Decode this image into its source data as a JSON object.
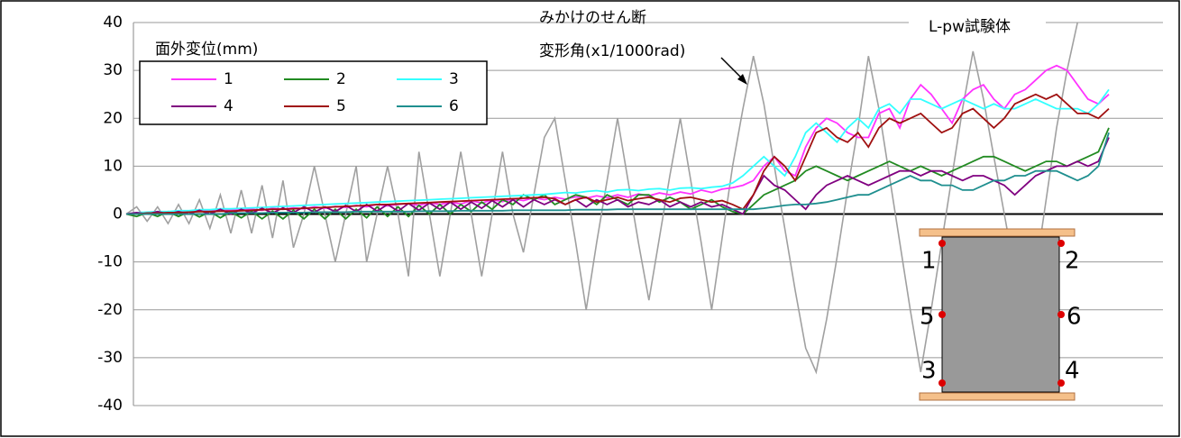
{
  "chart_data": {
    "type": "line",
    "title": "L-pw試験体",
    "annotations": [
      "みかけのせん断",
      "変形角(x1/1000rad)"
    ],
    "legend_title": "面外変位(mm)",
    "diagram_labels": [
      "1",
      "2",
      "5",
      "6",
      "3",
      "4"
    ],
    "ylim": [
      -40,
      40
    ],
    "yticks": [
      -40,
      -30,
      -20,
      -10,
      0,
      10,
      20,
      30,
      40
    ],
    "grid": true,
    "series": [
      {
        "color": "#a0a0a0",
        "values": [
          0,
          1.5,
          -1.5,
          1.5,
          -2,
          2,
          -2,
          3,
          -3,
          4,
          -4,
          5,
          -4,
          6,
          -5,
          7,
          -7,
          0,
          10,
          0,
          -10,
          0,
          10,
          -10,
          0,
          10,
          0,
          -13,
          13,
          0,
          -13,
          0,
          13,
          0,
          -13,
          0,
          13,
          0,
          -8,
          4,
          16,
          20,
          7,
          -6,
          -20,
          -6,
          7,
          20,
          7,
          -6,
          -18,
          -5,
          8,
          20,
          7,
          -6,
          -20,
          -5,
          10,
          22,
          33,
          23,
          10,
          -3,
          -16,
          -28,
          -33,
          -22,
          -9,
          5,
          18,
          33,
          22,
          8,
          -6,
          -20,
          -33,
          -20,
          -6,
          8,
          22,
          34,
          24,
          12,
          0,
          -12,
          -22,
          -12,
          3,
          18,
          30,
          40,
          null,
          null,
          null
        ]
      },
      {
        "name": "1",
        "color": "#ff33ff",
        "values": [
          0,
          0.3,
          0,
          0.5,
          0.3,
          0.6,
          0.5,
          0.8,
          0.6,
          1,
          0.8,
          1,
          1,
          0.8,
          1.2,
          1,
          1.3,
          1.1,
          1.5,
          1.2,
          1.6,
          1.4,
          1.8,
          1.5,
          2,
          1.7,
          2,
          2.2,
          1.8,
          2.4,
          2,
          2.5,
          2.1,
          2.8,
          2.3,
          3,
          2.6,
          3.2,
          2.8,
          3.4,
          3,
          3.5,
          3.1,
          3.6,
          3.3,
          3.8,
          3.4,
          4,
          3.5,
          4.2,
          3.8,
          4.4,
          4,
          4.6,
          4.2,
          5,
          4.5,
          5.2,
          5.5,
          6,
          7,
          10,
          12,
          9,
          8,
          14,
          18,
          20,
          19,
          17,
          16,
          16,
          21,
          22,
          18,
          24,
          27,
          25,
          22,
          19,
          24,
          26,
          27,
          24,
          22,
          25,
          26,
          28,
          30,
          31,
          30,
          27,
          24,
          23,
          25
        ]
      },
      {
        "name": "2",
        "color": "#228b22",
        "values": [
          0,
          -0.5,
          0.3,
          -0.5,
          0.5,
          -0.5,
          0.5,
          -0.6,
          0.5,
          -0.8,
          0.5,
          -0.8,
          0.6,
          -1,
          0.6,
          -1,
          0.8,
          -1,
          1,
          -1,
          1,
          -1,
          1,
          -0.8,
          1.5,
          -0.5,
          1.5,
          -0.5,
          1.8,
          0,
          2,
          0,
          2,
          0.5,
          2.5,
          1,
          3,
          2,
          4,
          3,
          4,
          2,
          3,
          4,
          3.5,
          2,
          4,
          3,
          2,
          4,
          4,
          2.5,
          3.5,
          2.5,
          1,
          2,
          3,
          1.5,
          0.5,
          0,
          2,
          4,
          5,
          6,
          7,
          9,
          10,
          9,
          8,
          7,
          8,
          9,
          10,
          11,
          10,
          9,
          10,
          9,
          8,
          9,
          10,
          11,
          12,
          12,
          11,
          10,
          9,
          10,
          11,
          11,
          10,
          11,
          12,
          13,
          18
        ]
      },
      {
        "name": "3",
        "color": "#33ffff",
        "values": [
          0,
          0.3,
          0.4,
          0.5,
          0.5,
          0.7,
          0.7,
          0.9,
          0.9,
          1.1,
          1.1,
          1.2,
          1.3,
          1.4,
          1.5,
          1.6,
          1.7,
          1.8,
          1.9,
          2,
          2.1,
          2.2,
          2.3,
          2.4,
          2.5,
          2.6,
          2.7,
          2.8,
          2.9,
          3,
          3.1,
          3.2,
          3.3,
          3.4,
          3.5,
          3.6,
          3.7,
          3.8,
          3.9,
          4,
          4.1,
          4.3,
          4.5,
          4.4,
          4.7,
          4.9,
          4.6,
          5,
          5.1,
          4.9,
          5.2,
          5.3,
          5,
          5.4,
          5.5,
          5.3,
          5.6,
          5.8,
          6.5,
          8,
          10,
          12,
          10,
          8,
          12,
          17,
          19,
          17,
          15,
          18,
          20,
          18,
          22,
          23,
          21,
          24,
          24,
          23,
          22,
          23,
          24,
          23,
          22,
          23,
          22,
          22,
          23,
          24,
          23,
          22,
          22,
          22,
          21,
          23,
          26
        ]
      },
      {
        "name": "4",
        "color": "#800080",
        "values": [
          0,
          0.3,
          0,
          0.5,
          0,
          0.5,
          0,
          0.8,
          0,
          1,
          0,
          1,
          0.2,
          1.2,
          0.2,
          1.3,
          0.3,
          1.5,
          0.4,
          1.5,
          0.5,
          1.8,
          0.5,
          2,
          0.6,
          2,
          0.6,
          2.2,
          0.8,
          2.3,
          1,
          2.5,
          1,
          2.5,
          1.2,
          2.8,
          1.5,
          3,
          1.5,
          3,
          2,
          3,
          2,
          3,
          1.5,
          3,
          2,
          3,
          1.5,
          2.5,
          2,
          3,
          1.5,
          2.5,
          1.5,
          2.5,
          1.5,
          2,
          1,
          0,
          4,
          8,
          6,
          5,
          3,
          1,
          4,
          6,
          7,
          8,
          7,
          6,
          7,
          8,
          9,
          9,
          8,
          9,
          9,
          8,
          7,
          8,
          8,
          7,
          6,
          4,
          6,
          8,
          9,
          10,
          10,
          11,
          10,
          11,
          16
        ]
      },
      {
        "name": "5",
        "color": "#a01010",
        "values": [
          0,
          0,
          0.2,
          0.2,
          0.3,
          0.3,
          0.4,
          0.5,
          0.5,
          0.6,
          0.6,
          0.7,
          0.8,
          0.9,
          1,
          1,
          1.1,
          1.2,
          1.3,
          1.4,
          1.5,
          1.6,
          1.7,
          1.8,
          2,
          2,
          2.1,
          2.2,
          2.3,
          2.4,
          2.5,
          2.6,
          2.7,
          2.8,
          2.9,
          3,
          3.1,
          3.2,
          3.3,
          3.4,
          3.5,
          3.2,
          2,
          3,
          3.5,
          2.5,
          3,
          3.5,
          2.8,
          3.2,
          3.5,
          3,
          2.5,
          3.3,
          3.5,
          3,
          2.5,
          2.8,
          2,
          1,
          4,
          9,
          12,
          10,
          7,
          12,
          17,
          18,
          16,
          15,
          17,
          14,
          18,
          20,
          19,
          20,
          21,
          19,
          17,
          18,
          21,
          22,
          20,
          18,
          20,
          23,
          24,
          25,
          24,
          25,
          23,
          21,
          21,
          20,
          22
        ]
      },
      {
        "name": "6",
        "color": "#1f8f8f",
        "values": [
          0,
          0,
          0,
          0,
          0,
          0,
          0,
          0,
          0,
          0,
          0.2,
          0.2,
          0.2,
          0.2,
          0.3,
          0.3,
          0.3,
          0.3,
          0.4,
          0.4,
          0.4,
          0.4,
          0.5,
          0.5,
          0.5,
          0.5,
          0.5,
          0.5,
          0.6,
          0.6,
          0.6,
          0.6,
          0.7,
          0.7,
          0.7,
          0.7,
          0.7,
          0.8,
          0.8,
          0.8,
          0.8,
          0.8,
          0.8,
          0.9,
          0.9,
          0.9,
          0.9,
          1,
          1,
          1,
          1,
          1,
          1,
          1,
          1,
          1,
          1,
          1,
          1,
          1,
          1,
          1.2,
          1.5,
          1.8,
          2,
          2,
          2.2,
          2.5,
          3,
          3.5,
          4,
          4,
          5,
          6,
          7,
          8,
          7,
          7,
          6,
          6,
          5,
          5,
          6,
          7,
          7,
          8,
          8,
          9,
          9,
          9,
          8,
          7,
          8,
          10,
          17
        ]
      }
    ]
  }
}
